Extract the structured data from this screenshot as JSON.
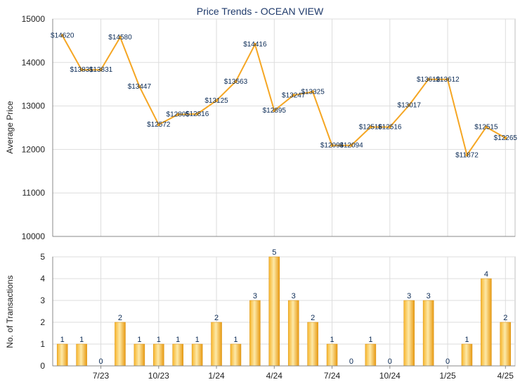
{
  "chart_data": [
    {
      "type": "line",
      "title": "Price Trends - OCEAN VIEW",
      "ylabel": "Average Price",
      "ylim": [
        10000,
        15000
      ],
      "yticks": [
        10000,
        11000,
        12000,
        13000,
        14000,
        15000
      ],
      "grid": true,
      "value_prefix": "$",
      "series": [
        {
          "values": [
            14620,
            13831,
            13831,
            14580,
            13447,
            12572,
            12805,
            12816,
            13125,
            13563,
            14416,
            12895,
            13247,
            13325,
            12094,
            12094,
            12516,
            12516,
            13017,
            13612,
            13612,
            11872,
            12515,
            12265
          ],
          "color": "#f5a623"
        }
      ]
    },
    {
      "type": "bar",
      "ylabel": "No. of Transactions",
      "ylim": [
        0,
        5
      ],
      "yticks": [
        0,
        1,
        2,
        3,
        4,
        5
      ],
      "xtick_labels": [
        "7/23",
        "10/23",
        "1/24",
        "4/24",
        "7/24",
        "10/24",
        "1/25",
        "4/25"
      ],
      "grid": true,
      "series": [
        {
          "values": [
            1,
            1,
            0,
            2,
            1,
            1,
            1,
            1,
            2,
            1,
            3,
            5,
            3,
            2,
            1,
            0,
            1,
            0,
            3,
            3,
            0,
            1,
            4,
            2
          ],
          "color": "#f0b030"
        }
      ]
    }
  ]
}
